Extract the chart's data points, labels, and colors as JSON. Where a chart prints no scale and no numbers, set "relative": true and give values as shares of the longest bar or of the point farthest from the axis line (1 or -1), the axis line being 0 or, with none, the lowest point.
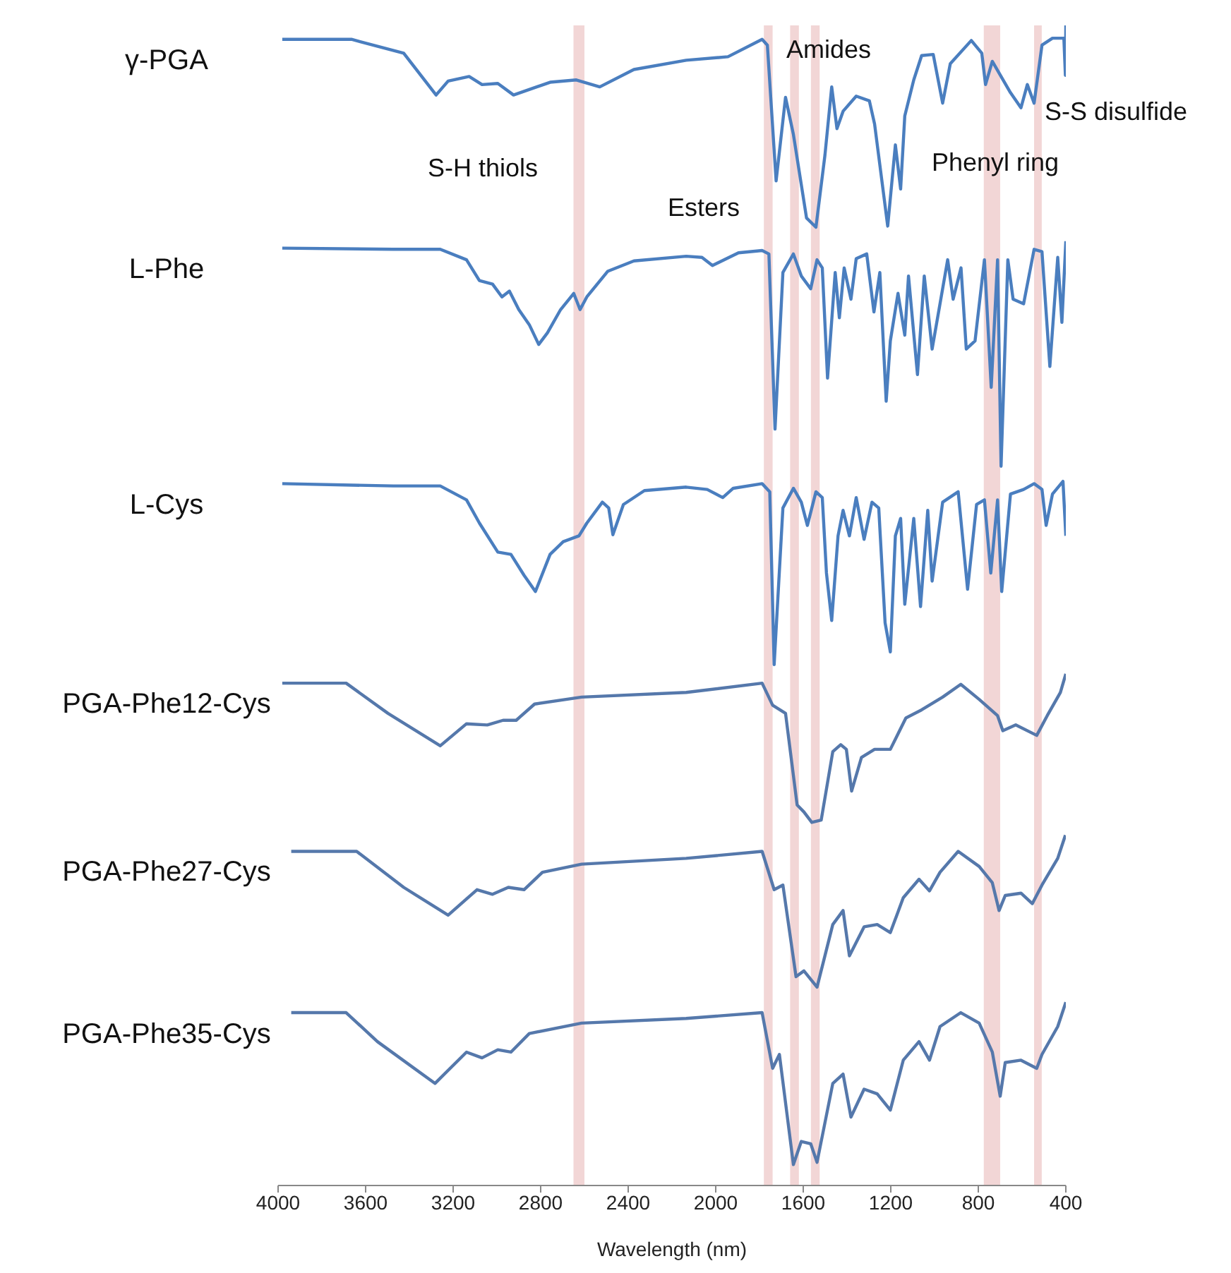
{
  "chart_data": {
    "type": "line",
    "relative": true,
    "xlabel": "Wavelength (nm)",
    "xlim": [
      4000,
      400
    ],
    "xticks": [
      4000,
      3600,
      3200,
      2800,
      2400,
      2000,
      1600,
      1200,
      800,
      400
    ],
    "tick_labels": "x",
    "marker": "none",
    "series": [
      {
        "name": "γ-PGA",
        "color": "#4a7ebf",
        "x": [
          3981,
          3665,
          3426,
          3278,
          3223,
          3127,
          3068,
          2996,
          2924,
          2757,
          2637,
          2530,
          2374,
          2135,
          1944,
          1788,
          1764,
          1724,
          1681,
          1645,
          1585,
          1542,
          1501,
          1470,
          1446,
          1418,
          1358,
          1298,
          1274,
          1214,
          1179,
          1155,
          1136,
          1095,
          1059,
          1006,
          963,
          928,
          832,
          784,
          767,
          736,
          653,
          605,
          576,
          545,
          509,
          461,
          409,
          402,
          400
        ],
        "values": [
          0.988,
          0.988,
          0.976,
          0.94,
          0.952,
          0.956,
          0.949,
          0.95,
          0.94,
          0.951,
          0.953,
          0.947,
          0.962,
          0.97,
          0.973,
          0.988,
          0.983,
          0.866,
          0.938,
          0.906,
          0.834,
          0.826,
          0.888,
          0.947,
          0.911,
          0.926,
          0.939,
          0.935,
          0.915,
          0.827,
          0.897,
          0.859,
          0.922,
          0.953,
          0.974,
          0.975,
          0.933,
          0.967,
          0.987,
          0.976,
          0.949,
          0.969,
          0.942,
          0.929,
          0.949,
          0.933,
          0.983,
          0.989,
          0.989,
          0.957,
          1.0
        ]
      },
      {
        "name": "L-Phe",
        "color": "#4a7ebf",
        "x": [
          3981,
          3474,
          3259,
          3139,
          3080,
          3020,
          2977,
          2943,
          2900,
          2852,
          2809,
          2769,
          2709,
          2649,
          2620,
          2589,
          2494,
          2374,
          2135,
          2063,
          2015,
          1896,
          1788,
          1757,
          1729,
          1693,
          1645,
          1609,
          1566,
          1537,
          1513,
          1489,
          1454,
          1435,
          1413,
          1382,
          1358,
          1310,
          1277,
          1250,
          1221,
          1202,
          1167,
          1136,
          1119,
          1078,
          1047,
          1011,
          940,
          915,
          879,
          855,
          815,
          772,
          741,
          712,
          696,
          665,
          641,
          593,
          545,
          509,
          473,
          437,
          418,
          400
        ],
        "values": [
          0.808,
          0.807,
          0.807,
          0.798,
          0.78,
          0.777,
          0.766,
          0.771,
          0.755,
          0.742,
          0.725,
          0.735,
          0.755,
          0.769,
          0.755,
          0.766,
          0.788,
          0.797,
          0.801,
          0.8,
          0.793,
          0.804,
          0.806,
          0.803,
          0.652,
          0.787,
          0.803,
          0.784,
          0.773,
          0.798,
          0.791,
          0.696,
          0.787,
          0.748,
          0.791,
          0.764,
          0.799,
          0.803,
          0.753,
          0.787,
          0.676,
          0.728,
          0.769,
          0.733,
          0.784,
          0.699,
          0.784,
          0.721,
          0.798,
          0.764,
          0.791,
          0.721,
          0.728,
          0.798,
          0.688,
          0.798,
          0.62,
          0.798,
          0.764,
          0.76,
          0.807,
          0.805,
          0.706,
          0.8,
          0.744,
          0.814
        ]
      },
      {
        "name": "L-Cys",
        "color": "#4a7ebf",
        "x": [
          3981,
          3474,
          3259,
          3139,
          3080,
          2996,
          2936,
          2876,
          2824,
          2757,
          2697,
          2625,
          2589,
          2518,
          2489,
          2470,
          2422,
          2326,
          2135,
          2039,
          1968,
          1920,
          1788,
          1753,
          1733,
          1693,
          1645,
          1609,
          1581,
          1542,
          1513,
          1494,
          1470,
          1441,
          1418,
          1389,
          1358,
          1322,
          1286,
          1255,
          1226,
          1202,
          1179,
          1155,
          1136,
          1095,
          1064,
          1031,
          1011,
          963,
          892,
          849,
          808,
          772,
          743,
          712,
          693,
          653,
          593,
          545,
          509,
          490,
          461,
          413,
          400
        ],
        "values": [
          0.605,
          0.603,
          0.603,
          0.591,
          0.571,
          0.546,
          0.544,
          0.526,
          0.512,
          0.544,
          0.555,
          0.56,
          0.571,
          0.589,
          0.584,
          0.561,
          0.587,
          0.599,
          0.602,
          0.6,
          0.593,
          0.601,
          0.605,
          0.598,
          0.449,
          0.584,
          0.601,
          0.589,
          0.569,
          0.598,
          0.593,
          0.528,
          0.487,
          0.56,
          0.582,
          0.56,
          0.593,
          0.557,
          0.589,
          0.584,
          0.485,
          0.46,
          0.56,
          0.575,
          0.501,
          0.575,
          0.499,
          0.582,
          0.521,
          0.589,
          0.598,
          0.514,
          0.587,
          0.591,
          0.528,
          0.591,
          0.512,
          0.596,
          0.6,
          0.605,
          0.6,
          0.569,
          0.596,
          0.607,
          0.56
        ]
      },
      {
        "name": "PGA-Phe12-Cys",
        "color": "#5578ab",
        "x": [
          3981,
          3689,
          3498,
          3259,
          3139,
          3044,
          2972,
          2912,
          2828,
          2613,
          2135,
          1788,
          1740,
          1681,
          1628,
          1597,
          1561,
          1518,
          1465,
          1429,
          1403,
          1379,
          1334,
          1274,
          1202,
          1131,
          1059,
          963,
          880,
          796,
          712,
          688,
          629,
          533,
          485,
          425,
          400
        ],
        "values": [
          0.433,
          0.433,
          0.407,
          0.379,
          0.398,
          0.397,
          0.401,
          0.401,
          0.415,
          0.421,
          0.425,
          0.433,
          0.414,
          0.407,
          0.328,
          0.322,
          0.313,
          0.315,
          0.374,
          0.38,
          0.376,
          0.34,
          0.369,
          0.376,
          0.376,
          0.403,
          0.41,
          0.421,
          0.432,
          0.419,
          0.405,
          0.392,
          0.397,
          0.388,
          0.405,
          0.425,
          0.441
        ]
      },
      {
        "name": "PGA-Phe27-Cys",
        "color": "#5578ab",
        "x": [
          3940,
          3641,
          3426,
          3223,
          3091,
          3020,
          2948,
          2876,
          2792,
          2613,
          2135,
          1788,
          1733,
          1693,
          1633,
          1597,
          1537,
          1465,
          1418,
          1389,
          1322,
          1262,
          1202,
          1143,
          1071,
          1023,
          975,
          892,
          796,
          736,
          705,
          677,
          605,
          553,
          509,
          437,
          402
        ],
        "values": [
          0.288,
          0.288,
          0.257,
          0.233,
          0.255,
          0.251,
          0.257,
          0.255,
          0.27,
          0.277,
          0.282,
          0.288,
          0.255,
          0.259,
          0.18,
          0.185,
          0.171,
          0.225,
          0.237,
          0.198,
          0.223,
          0.225,
          0.218,
          0.248,
          0.264,
          0.254,
          0.27,
          0.288,
          0.275,
          0.261,
          0.237,
          0.25,
          0.252,
          0.243,
          0.259,
          0.282,
          0.302
        ]
      },
      {
        "name": "PGA-Phe35-Cys",
        "color": "#5578ab",
        "x": [
          3940,
          3689,
          3546,
          3283,
          3139,
          3068,
          2996,
          2936,
          2852,
          2613,
          2135,
          1788,
          1740,
          1709,
          1645,
          1609,
          1566,
          1537,
          1465,
          1418,
          1382,
          1322,
          1262,
          1202,
          1143,
          1071,
          1023,
          975,
          880,
          796,
          736,
          700,
          677,
          605,
          533,
          509,
          437,
          400
        ],
        "values": [
          0.149,
          0.149,
          0.124,
          0.088,
          0.115,
          0.11,
          0.117,
          0.115,
          0.131,
          0.14,
          0.144,
          0.149,
          0.101,
          0.113,
          0.018,
          0.038,
          0.036,
          0.02,
          0.088,
          0.096,
          0.059,
          0.083,
          0.079,
          0.065,
          0.108,
          0.124,
          0.108,
          0.137,
          0.149,
          0.14,
          0.115,
          0.077,
          0.106,
          0.108,
          0.101,
          0.113,
          0.137,
          0.158
        ]
      }
    ],
    "bands": [
      {
        "axis": "x",
        "from": 2650,
        "to": 2600,
        "color": "#f2d6d6"
      },
      {
        "axis": "x",
        "from": 1780,
        "to": 1740,
        "color": "#f2d6d6"
      },
      {
        "axis": "x",
        "from": 1660,
        "to": 1620,
        "color": "#f2d6d6"
      },
      {
        "axis": "x",
        "from": 1565,
        "to": 1525,
        "color": "#f2d6d6"
      },
      {
        "axis": "x",
        "from": 775,
        "to": 700,
        "color": "#f2d6d6"
      },
      {
        "axis": "x",
        "from": 545,
        "to": 510,
        "color": "#f2d6d6"
      }
    ],
    "annotations": [
      "S-H thiols",
      "Esters",
      "Amides",
      "Phenyl ring",
      "S-S disulfide"
    ]
  }
}
